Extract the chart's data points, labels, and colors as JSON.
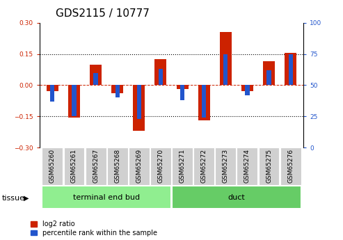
{
  "title": "GDS2115 / 10777",
  "samples": [
    "GSM65260",
    "GSM65261",
    "GSM65267",
    "GSM65268",
    "GSM65269",
    "GSM65270",
    "GSM65271",
    "GSM65272",
    "GSM65273",
    "GSM65274",
    "GSM65275",
    "GSM65276"
  ],
  "log2_ratio": [
    -0.03,
    -0.155,
    0.1,
    -0.04,
    -0.22,
    0.125,
    -0.02,
    -0.17,
    0.255,
    -0.03,
    0.115,
    0.155
  ],
  "percentile": [
    37,
    25,
    60,
    40,
    23,
    63,
    38,
    24,
    75,
    42,
    62,
    75
  ],
  "groups": [
    {
      "label": "terminal end bud",
      "indices": [
        0,
        1,
        2,
        3,
        4,
        5
      ],
      "color": "#90ee90"
    },
    {
      "label": "duct",
      "indices": [
        6,
        7,
        8,
        9,
        10,
        11
      ],
      "color": "#66cc66"
    }
  ],
  "ylim_left": [
    -0.3,
    0.3
  ],
  "ylim_right": [
    0,
    100
  ],
  "yticks_left": [
    -0.3,
    -0.15,
    0,
    0.15,
    0.3
  ],
  "yticks_right": [
    0,
    25,
    50,
    75,
    100
  ],
  "bar_color_red": "#cc2200",
  "bar_color_blue": "#2255cc",
  "bar_width": 0.55,
  "blue_bar_width": 0.2,
  "title_fontsize": 11,
  "tick_fontsize": 6.5,
  "label_fontsize": 8,
  "legend_fontsize": 7,
  "tissue_label": "tissue",
  "background_labels": "#d0d0d0",
  "group_color_1": "#90ee90",
  "group_color_2": "#66cc66"
}
